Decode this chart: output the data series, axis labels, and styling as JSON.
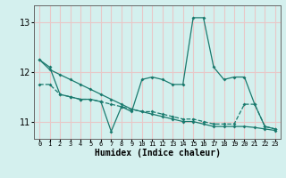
{
  "xlabel": "Humidex (Indice chaleur)",
  "bg_color": "#d4f0ee",
  "grid_color": "#e8c8c8",
  "line_color": "#1a7a6e",
  "xlim": [
    -0.5,
    23.5
  ],
  "ylim": [
    10.65,
    13.35
  ],
  "yticks": [
    11,
    12,
    13
  ],
  "xticks": [
    0,
    1,
    2,
    3,
    4,
    5,
    6,
    7,
    8,
    9,
    10,
    11,
    12,
    13,
    14,
    15,
    16,
    17,
    18,
    19,
    20,
    21,
    22,
    23
  ],
  "series": [
    {
      "x": [
        0,
        1,
        2,
        3,
        4,
        5,
        6,
        7,
        8,
        9,
        10,
        11,
        12,
        13,
        14,
        15,
        16,
        17,
        18,
        19,
        20,
        21,
        22,
        23
      ],
      "y": [
        11.75,
        11.75,
        11.55,
        11.5,
        11.45,
        11.45,
        11.4,
        11.35,
        11.3,
        11.25,
        11.2,
        11.2,
        11.15,
        11.1,
        11.05,
        11.05,
        11.0,
        10.95,
        10.95,
        10.95,
        11.35,
        11.35,
        10.9,
        10.85
      ],
      "linestyle": "--"
    },
    {
      "x": [
        0,
        1,
        2,
        3,
        4,
        5,
        6,
        7,
        8,
        9,
        10,
        11,
        12,
        13,
        14,
        15,
        16,
        17,
        18,
        19,
        20,
        21,
        22,
        23
      ],
      "y": [
        12.25,
        12.1,
        11.55,
        11.5,
        11.45,
        11.45,
        11.4,
        10.8,
        11.3,
        11.2,
        11.85,
        11.9,
        11.85,
        11.75,
        11.75,
        13.1,
        13.1,
        12.1,
        11.85,
        11.9,
        11.9,
        11.35,
        10.9,
        10.85
      ],
      "linestyle": "-"
    },
    {
      "x": [
        0,
        1,
        2,
        3,
        4,
        5,
        6,
        7,
        8,
        9,
        10,
        11,
        12,
        13,
        14,
        15,
        16,
        17,
        18,
        19,
        20,
        21,
        22,
        23
      ],
      "y": [
        12.25,
        12.05,
        11.95,
        11.85,
        11.75,
        11.65,
        11.55,
        11.45,
        11.35,
        11.25,
        11.2,
        11.15,
        11.1,
        11.05,
        11.0,
        11.0,
        10.95,
        10.9,
        10.9,
        10.9,
        10.9,
        10.88,
        10.85,
        10.82
      ],
      "linestyle": "-"
    }
  ]
}
